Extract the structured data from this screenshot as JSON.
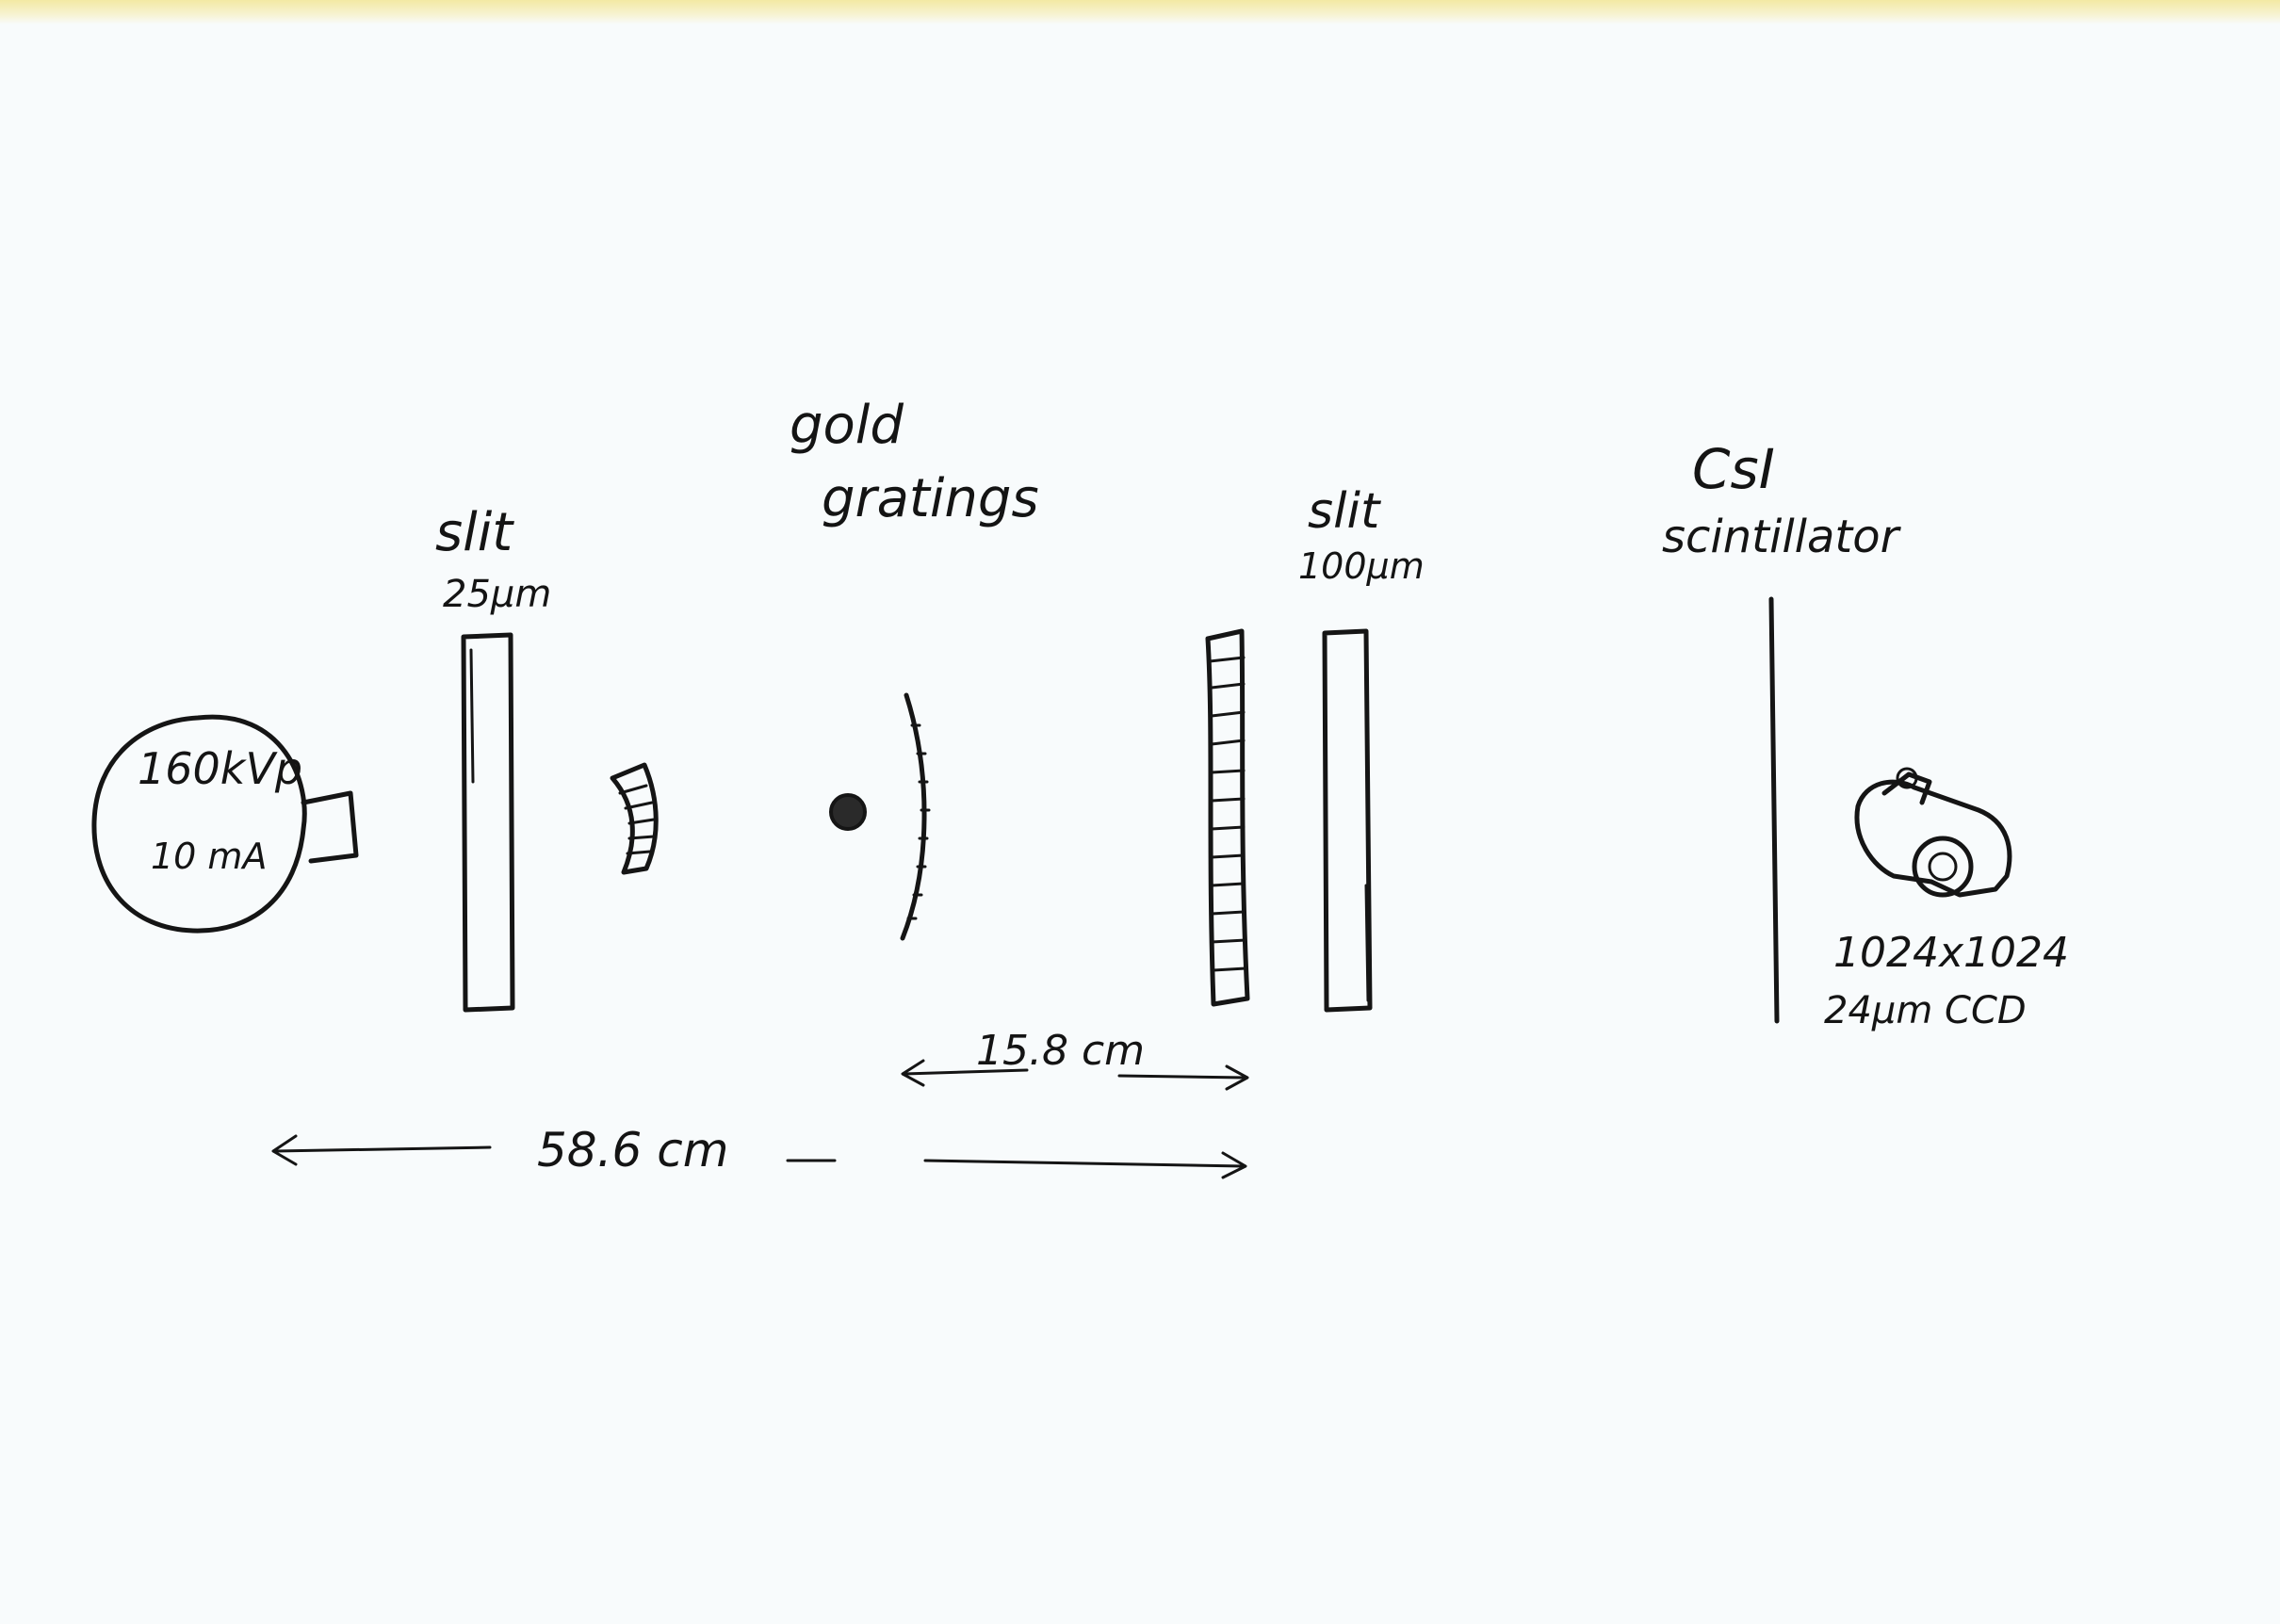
{
  "source": {
    "line1": "160kVp",
    "line2": "10 mA"
  },
  "slit1": {
    "label": "slit",
    "width": "25μm"
  },
  "gratings": {
    "line1": "gold",
    "line2": "gratings"
  },
  "slit2": {
    "label": "slit",
    "width": "100μm"
  },
  "scintillator": {
    "line1": "CsI",
    "line2": "scintillator"
  },
  "camera": {
    "resolution": "1024x1024",
    "pixel": "24μm  CCD"
  },
  "dimensions": {
    "short": "15.8 cm",
    "long": "58.6 cm"
  },
  "colors": {
    "ink": "#151515",
    "paper": "#f8fbfc",
    "band": "#f3e9a4"
  }
}
